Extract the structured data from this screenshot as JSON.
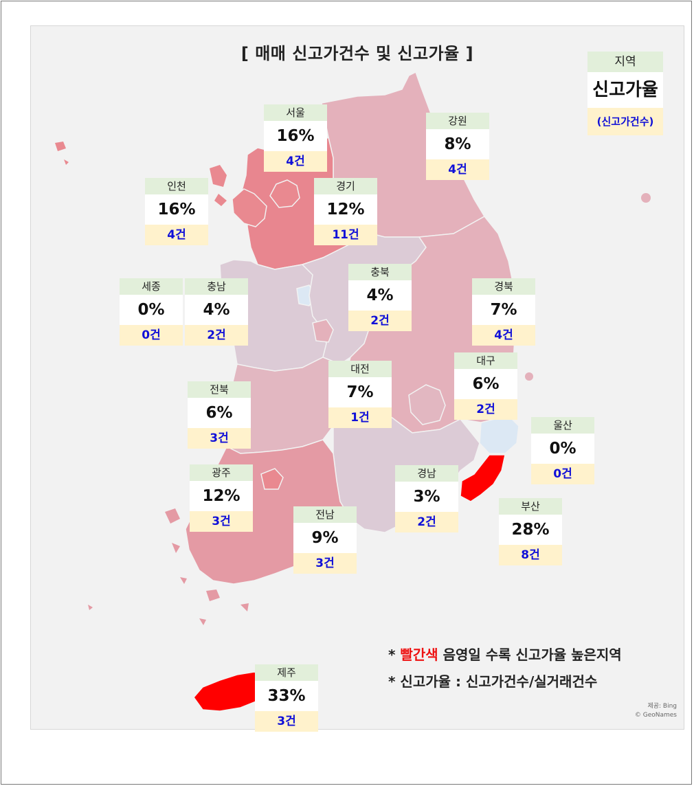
{
  "title": "[ 매매 신고가건수 및 신고가율 ]",
  "legend": {
    "name": "지역",
    "rate": "신고가율",
    "count": "(신고가건수)"
  },
  "regions": [
    {
      "id": "seoul",
      "name": "서울",
      "rate": "16%",
      "count": "4건"
    },
    {
      "id": "gangwon",
      "name": "강원",
      "rate": "8%",
      "count": "4건"
    },
    {
      "id": "incheon",
      "name": "인천",
      "rate": "16%",
      "count": "4건"
    },
    {
      "id": "gyeonggi",
      "name": "경기",
      "rate": "12%",
      "count": "11건"
    },
    {
      "id": "chungbuk",
      "name": "충북",
      "rate": "4%",
      "count": "2건"
    },
    {
      "id": "sejong",
      "name": "세종",
      "rate": "0%",
      "count": "0건"
    },
    {
      "id": "chungnam",
      "name": "충남",
      "rate": "4%",
      "count": "2건"
    },
    {
      "id": "gyeongbuk",
      "name": "경북",
      "rate": "7%",
      "count": "4건"
    },
    {
      "id": "daejeon",
      "name": "대전",
      "rate": "7%",
      "count": "1건"
    },
    {
      "id": "daegu",
      "name": "대구",
      "rate": "6%",
      "count": "2건"
    },
    {
      "id": "jeonbuk",
      "name": "전북",
      "rate": "6%",
      "count": "3건"
    },
    {
      "id": "ulsan",
      "name": "울산",
      "rate": "0%",
      "count": "0건"
    },
    {
      "id": "gwangju",
      "name": "광주",
      "rate": "12%",
      "count": "3건"
    },
    {
      "id": "gyeongnam",
      "name": "경남",
      "rate": "3%",
      "count": "2건"
    },
    {
      "id": "jeonnam",
      "name": "전남",
      "rate": "9%",
      "count": "3건"
    },
    {
      "id": "busan",
      "name": "부산",
      "rate": "28%",
      "count": "8건"
    },
    {
      "id": "jeju",
      "name": "제주",
      "rate": "33%",
      "count": "3건"
    }
  ],
  "notes": {
    "line1_prefix": "* ",
    "line1_red": "빨간색",
    "line1_rest": " 음영일 수록 신고가율 높은지역",
    "line2": "* 신고가율 : 신고가건수/실거래건수"
  },
  "credit": {
    "line1": "제공: Bing",
    "line2": "© GeoNames"
  },
  "colors": {
    "gyeonggi": "#e8868f",
    "seoul_incheon": "#e98990",
    "gangwon_gyeongbuk": "#e4b1bb",
    "chungbuk_chungnam_gyeongnam": "#dccbd6",
    "jeonbuk_daegu": "#e2b7c1",
    "jeonnam": "#e49aa4",
    "busan_jeju": "#ff0000",
    "ulsan_sejong": "#dce8f4"
  }
}
